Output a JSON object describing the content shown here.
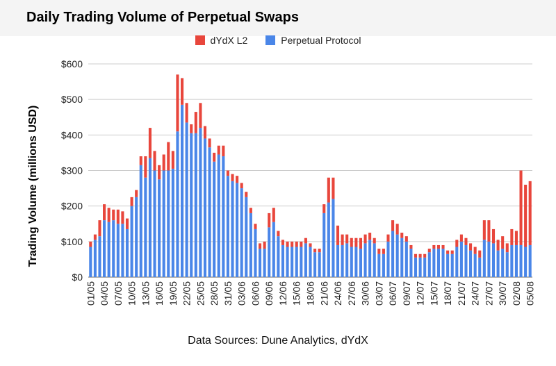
{
  "chart_data": {
    "type": "bar",
    "stacked": true,
    "title": "Daily Trading Volume of Perpetual Swaps",
    "ylabel": "Trading Volume (millions USD)",
    "xlabel": "",
    "ylim": [
      0,
      600
    ],
    "yticks": [
      0,
      100,
      200,
      300,
      400,
      500,
      600
    ],
    "ytick_labels": [
      "$0",
      "$100",
      "$200",
      "$300",
      "$400",
      "$500",
      "$600"
    ],
    "grid": true,
    "legend_position": "top-center",
    "categories": [
      "01/05",
      "02/05",
      "03/05",
      "04/05",
      "05/05",
      "06/05",
      "07/05",
      "08/05",
      "09/05",
      "10/05",
      "11/05",
      "12/05",
      "13/05",
      "14/05",
      "15/05",
      "16/05",
      "17/05",
      "18/05",
      "19/05",
      "20/05",
      "21/05",
      "22/05",
      "23/05",
      "24/05",
      "25/05",
      "26/05",
      "27/05",
      "28/05",
      "29/05",
      "30/05",
      "31/05",
      "01/06",
      "02/06",
      "03/06",
      "04/06",
      "05/06",
      "06/06",
      "07/06",
      "08/06",
      "09/06",
      "10/06",
      "11/06",
      "12/06",
      "13/06",
      "14/06",
      "15/06",
      "16/06",
      "17/06",
      "18/06",
      "19/06",
      "20/06",
      "21/06",
      "22/06",
      "23/06",
      "24/06",
      "25/06",
      "26/06",
      "27/06",
      "28/06",
      "29/06",
      "30/06",
      "01/07",
      "02/07",
      "03/07",
      "04/07",
      "05/07",
      "06/07",
      "07/07",
      "08/07",
      "09/07",
      "10/07",
      "11/07",
      "12/07",
      "13/07",
      "14/07",
      "15/07",
      "16/07",
      "17/07",
      "18/07",
      "19/07",
      "20/07",
      "21/07",
      "22/07",
      "23/07",
      "24/07",
      "25/07",
      "26/07",
      "27/07",
      "28/07",
      "29/07",
      "30/07",
      "31/07",
      "01/08",
      "02/08",
      "03/08",
      "04/08",
      "05/08"
    ],
    "tick_labels_shown": [
      "01/05",
      "04/05",
      "07/05",
      "10/05",
      "13/05",
      "16/05",
      "19/05",
      "22/05",
      "25/05",
      "28/05",
      "31/05",
      "03/06",
      "06/06",
      "09/06",
      "12/06",
      "15/06",
      "18/06",
      "21/06",
      "24/06",
      "27/06",
      "30/06",
      "03/07",
      "06/07",
      "09/07",
      "12/07",
      "15/07",
      "18/07",
      "21/07",
      "24/07",
      "27/07",
      "30/07",
      "02/08",
      "05/08"
    ],
    "series": [
      {
        "name": "dYdX L2",
        "color": "#e8463c",
        "values": [
          15,
          15,
          45,
          45,
          40,
          30,
          40,
          35,
          30,
          25,
          20,
          25,
          60,
          85,
          55,
          40,
          45,
          80,
          50,
          160,
          75,
          55,
          25,
          60,
          70,
          35,
          25,
          25,
          25,
          30,
          15,
          20,
          20,
          15,
          15,
          15,
          15,
          15,
          20,
          40,
          40,
          15,
          15,
          15,
          15,
          15,
          15,
          15,
          10,
          10,
          10,
          25,
          70,
          60,
          55,
          30,
          25,
          25,
          25,
          30,
          25,
          20,
          15,
          15,
          15,
          20,
          30,
          30,
          15,
          15,
          10,
          10,
          10,
          10,
          10,
          10,
          10,
          10,
          10,
          10,
          20,
          20,
          20,
          20,
          20,
          20,
          55,
          60,
          40,
          30,
          35,
          25,
          45,
          40,
          210,
          175,
          180
        ]
      },
      {
        "name": "Perpetual Protocol",
        "color": "#4a86e8",
        "values": [
          85,
          105,
          115,
          160,
          155,
          160,
          150,
          150,
          135,
          200,
          225,
          315,
          280,
          335,
          300,
          275,
          300,
          300,
          305,
          410,
          485,
          435,
          405,
          405,
          420,
          390,
          365,
          325,
          345,
          340,
          285,
          270,
          265,
          250,
          225,
          180,
          135,
          80,
          80,
          140,
          155,
          115,
          90,
          85,
          85,
          85,
          85,
          95,
          85,
          70,
          70,
          180,
          210,
          220,
          90,
          90,
          95,
          85,
          85,
          80,
          95,
          105,
          95,
          65,
          65,
          100,
          130,
          120,
          110,
          100,
          80,
          55,
          55,
          55,
          70,
          80,
          80,
          80,
          65,
          65,
          85,
          100,
          90,
          75,
          65,
          55,
          105,
          100,
          95,
          75,
          80,
          70,
          90,
          90,
          90,
          85,
          90
        ]
      }
    ]
  },
  "footer": {
    "text": "Data Sources: Dune Analytics, dYdX"
  }
}
